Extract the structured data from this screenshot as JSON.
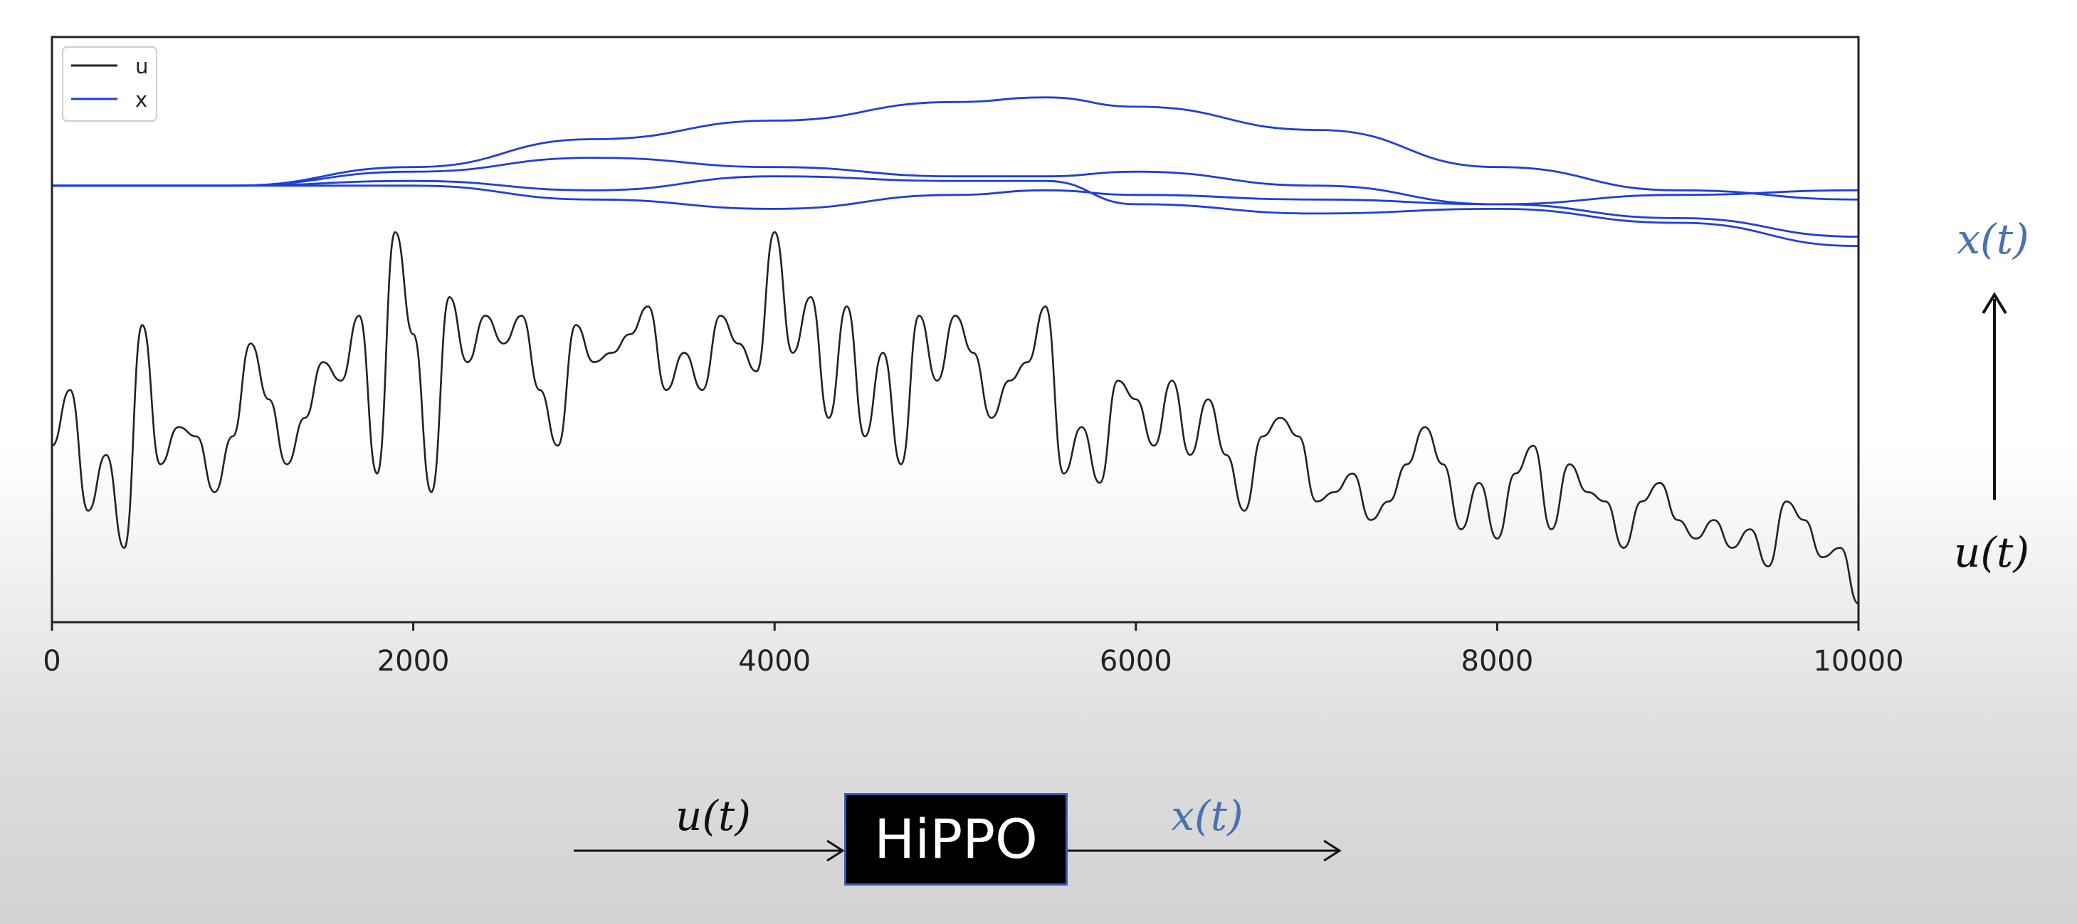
{
  "chart_data": {
    "type": "line",
    "xlim": [
      0,
      10000
    ],
    "x_ticks": [
      0,
      2000,
      4000,
      6000,
      8000,
      10000
    ],
    "grid": false,
    "legend": {
      "position": "top-left",
      "entries": [
        {
          "label": "u",
          "color": "#222222"
        },
        {
          "label": "x",
          "color": "#1f3fd8"
        }
      ]
    },
    "series": [
      {
        "name": "u",
        "color": "#222222",
        "x": [
          0,
          100,
          200,
          300,
          400,
          500,
          600,
          700,
          800,
          900,
          1000,
          1100,
          1200,
          1300,
          1400,
          1500,
          1600,
          1700,
          1800,
          1900,
          2000,
          2100,
          2200,
          2300,
          2400,
          2500,
          2600,
          2700,
          2800,
          2900,
          3000,
          3100,
          3200,
          3300,
          3400,
          3500,
          3600,
          3700,
          3800,
          3900,
          4000,
          4100,
          4200,
          4300,
          4400,
          4500,
          4600,
          4700,
          4800,
          4900,
          5000,
          5100,
          5200,
          5300,
          5400,
          5500,
          5600,
          5700,
          5800,
          5900,
          6000,
          6100,
          6200,
          6300,
          6400,
          6500,
          6600,
          6700,
          6800,
          6900,
          7000,
          7100,
          7200,
          7300,
          7400,
          7500,
          7600,
          7700,
          7800,
          7900,
          8000,
          8100,
          8200,
          8300,
          8400,
          8500,
          8600,
          8700,
          8800,
          8900,
          9000,
          9100,
          9200,
          9300,
          9400,
          9500,
          9600,
          9700,
          9800,
          9900,
          10000
        ],
        "values": [
          -0.4,
          0.2,
          -1.1,
          -0.5,
          -1.5,
          0.9,
          -0.6,
          -0.2,
          -0.3,
          -0.9,
          -0.3,
          0.7,
          0.1,
          -0.6,
          -0.1,
          0.5,
          0.3,
          1.0,
          -0.7,
          1.9,
          0.8,
          -0.9,
          1.2,
          0.5,
          1.0,
          0.7,
          1.0,
          0.2,
          -0.4,
          0.9,
          0.5,
          0.6,
          0.8,
          1.1,
          0.2,
          0.6,
          0.2,
          1.0,
          0.7,
          0.4,
          1.9,
          0.6,
          1.2,
          -0.1,
          1.1,
          -0.3,
          0.6,
          -0.6,
          1.0,
          0.3,
          1.0,
          0.6,
          -0.1,
          0.3,
          0.5,
          1.1,
          -0.7,
          -0.2,
          -0.8,
          0.3,
          0.1,
          -0.4,
          0.3,
          -0.5,
          0.1,
          -0.5,
          -1.1,
          -0.3,
          -0.1,
          -0.3,
          -1.0,
          -0.9,
          -0.7,
          -1.2,
          -1.0,
          -0.6,
          -0.2,
          -0.6,
          -1.3,
          -0.8,
          -1.4,
          -0.7,
          -0.4,
          -1.3,
          -0.6,
          -0.9,
          -1.0,
          -1.5,
          -1.0,
          -0.8,
          -1.2,
          -1.4,
          -1.2,
          -1.5,
          -1.3,
          -1.7,
          -1.0,
          -1.2,
          -1.6,
          -1.5,
          -2.1
        ]
      },
      {
        "name": "x",
        "color": "#1f3fd8",
        "x": [
          0,
          1000,
          2000,
          3000,
          4000,
          5000,
          5500,
          6000,
          7000,
          8000,
          9000,
          10000
        ],
        "values": [
          2.4,
          2.4,
          2.6,
          2.9,
          3.1,
          3.3,
          3.35,
          3.25,
          3.0,
          2.6,
          2.35,
          2.25
        ]
      },
      {
        "name": "x",
        "color": "#1f3fd8",
        "x": [
          0,
          1000,
          2000,
          3000,
          4000,
          5000,
          5500,
          6000,
          7000,
          8000,
          9000,
          10000
        ],
        "values": [
          2.4,
          2.4,
          2.55,
          2.7,
          2.6,
          2.5,
          2.5,
          2.55,
          2.4,
          2.2,
          2.05,
          1.85
        ]
      },
      {
        "name": "x",
        "color": "#1f3fd8",
        "x": [
          0,
          1000,
          2000,
          3000,
          4000,
          5000,
          5500,
          6000,
          7000,
          8000,
          9000,
          10000
        ],
        "values": [
          2.4,
          2.4,
          2.45,
          2.35,
          2.5,
          2.45,
          2.45,
          2.2,
          2.1,
          2.15,
          2.0,
          1.75
        ]
      },
      {
        "name": "x",
        "color": "#1f3fd8",
        "x": [
          0,
          1000,
          2000,
          3000,
          4000,
          5000,
          5500,
          6000,
          7000,
          8000,
          9000,
          10000
        ],
        "values": [
          2.4,
          2.4,
          2.4,
          2.25,
          2.15,
          2.3,
          2.35,
          2.3,
          2.25,
          2.2,
          2.3,
          2.35
        ]
      }
    ]
  },
  "annotations": {
    "right_top": "x(t)",
    "right_bottom": "u(t)",
    "flow_input": "u(t)",
    "flow_output": "x(t)",
    "box_label": "HiPPO"
  },
  "colors": {
    "x_math": "#4a72b0",
    "u_math": "#111111",
    "box_border": "#3b5cb5"
  }
}
